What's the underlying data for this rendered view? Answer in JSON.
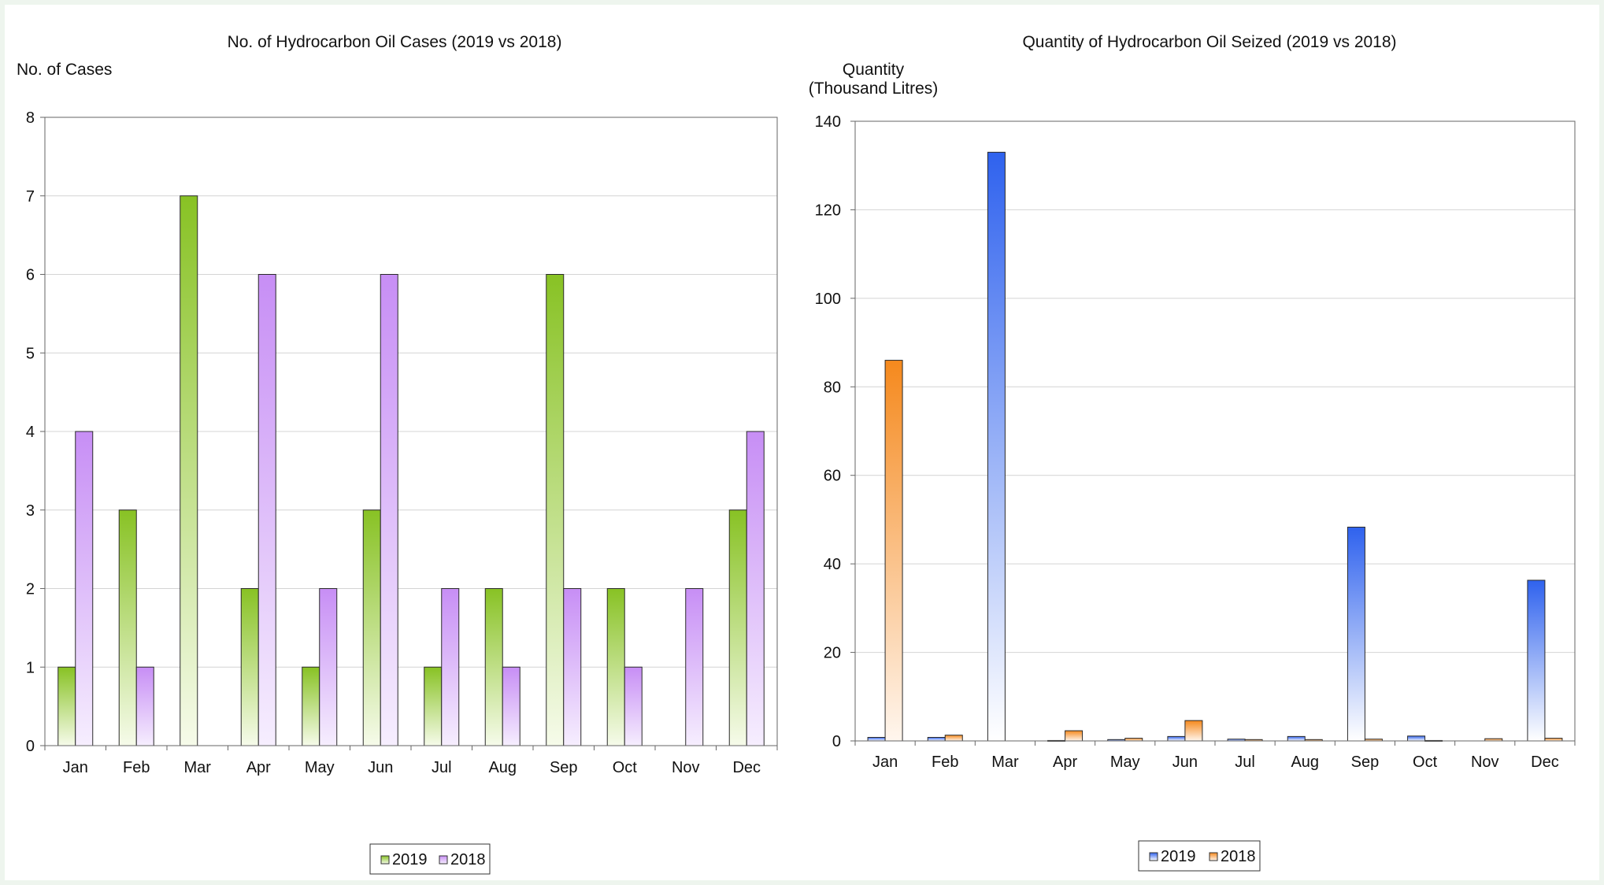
{
  "chart_data": [
    {
      "type": "bar",
      "title": "No. of Hydrocarbon Oil Cases (2019 vs 2018)",
      "ylabel": "No. of Cases",
      "xlabel": "",
      "categories": [
        "Jan",
        "Feb",
        "Mar",
        "Apr",
        "May",
        "Jun",
        "Jul",
        "Aug",
        "Sep",
        "Oct",
        "Nov",
        "Dec"
      ],
      "series": [
        {
          "name": "2019",
          "values": [
            1,
            3,
            7,
            2,
            1,
            3,
            1,
            2,
            6,
            2,
            0,
            3
          ],
          "color": "#88c224"
        },
        {
          "name": "2018",
          "values": [
            4,
            1,
            0,
            6,
            2,
            6,
            2,
            1,
            2,
            1,
            2,
            4
          ],
          "color": "#c78ef5"
        }
      ],
      "ylim": [
        0,
        8
      ],
      "yticks": [
        0,
        1,
        2,
        3,
        4,
        5,
        6,
        7,
        8
      ],
      "grid": true,
      "legend": "bottom-center"
    },
    {
      "type": "bar",
      "title": "Quantity of Hydrocarbon Oil Seized (2019 vs 2018)",
      "ylabel": "Quantity\n(Thousand Litres)",
      "xlabel": "",
      "categories": [
        "Jan",
        "Feb",
        "Mar",
        "Apr",
        "May",
        "Jun",
        "Jul",
        "Aug",
        "Sep",
        "Oct",
        "Nov",
        "Dec"
      ],
      "series": [
        {
          "name": "2019",
          "values": [
            0.8,
            0.8,
            133,
            0.1,
            0.3,
            1.0,
            0.4,
            1.0,
            48.3,
            1.1,
            0,
            36.3
          ],
          "color": "#2f62ee"
        },
        {
          "name": "2018",
          "values": [
            86,
            1.3,
            0,
            2.3,
            0.6,
            4.6,
            0.3,
            0.3,
            0.4,
            0.1,
            0.5,
            0.6
          ],
          "color": "#f5891d"
        }
      ],
      "ylim": [
        0,
        140
      ],
      "yticks": [
        0,
        20,
        40,
        60,
        80,
        100,
        120,
        140
      ],
      "grid": true,
      "legend": "bottom-center"
    }
  ]
}
